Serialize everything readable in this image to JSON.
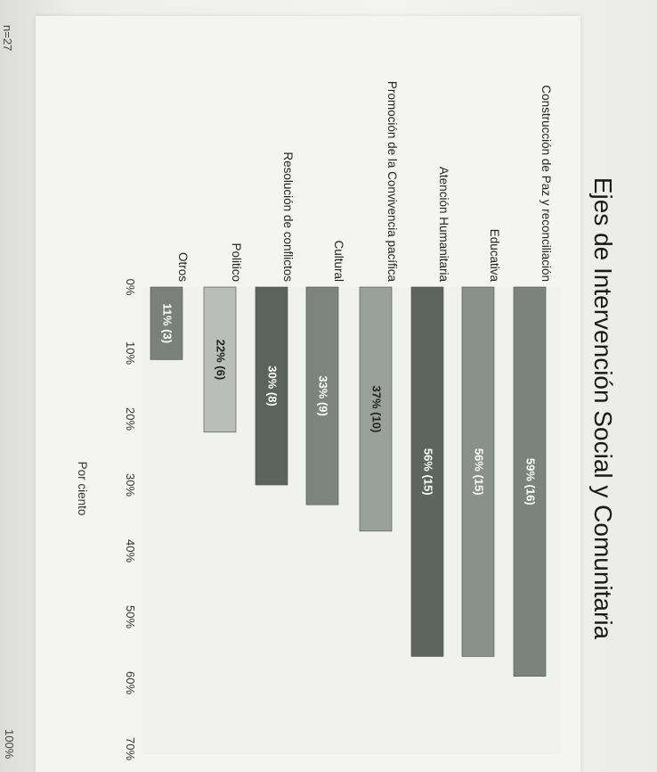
{
  "page": {
    "n_label": "n=27",
    "corner_label": "100%"
  },
  "chart_data": {
    "type": "bar",
    "orientation": "horizontal",
    "title": "Ejes de Intervención Social y Comunitaria",
    "xlabel": "Por ciento",
    "xlim": [
      0,
      70
    ],
    "xticks": [
      0,
      10,
      20,
      30,
      40,
      50,
      60,
      70
    ],
    "xtick_labels": [
      "0%",
      "10%",
      "20%",
      "30%",
      "40%",
      "50%",
      "60%",
      "70%"
    ],
    "categories": [
      "Construcción de Paz y reconciliación",
      "Educativa",
      "Atención Humanitaria",
      "Promoción de la Convivencia pacífica",
      "Cultural",
      "Resolución de conflictos",
      "Politico",
      "Otros"
    ],
    "values": [
      59,
      56,
      56,
      37,
      33,
      30,
      22,
      11
    ],
    "data_labels": [
      "59% (16)",
      "56% (15)",
      "56% (15)",
      "37% (10)",
      "33% (9)",
      "30% (8)",
      "22% (6)",
      "11% (3)"
    ],
    "colors": [
      "#7c837f",
      "#8a918d",
      "#5e6561",
      "#9aa19d",
      "#7d847f",
      "#5c635f",
      "#b9beba",
      "#7a817d"
    ],
    "label_colors": [
      "#ffffff",
      "#ffffff",
      "#ffffff",
      "#222222",
      "#ffffff",
      "#ffffff",
      "#222222",
      "#ffffff"
    ],
    "grid": false
  }
}
